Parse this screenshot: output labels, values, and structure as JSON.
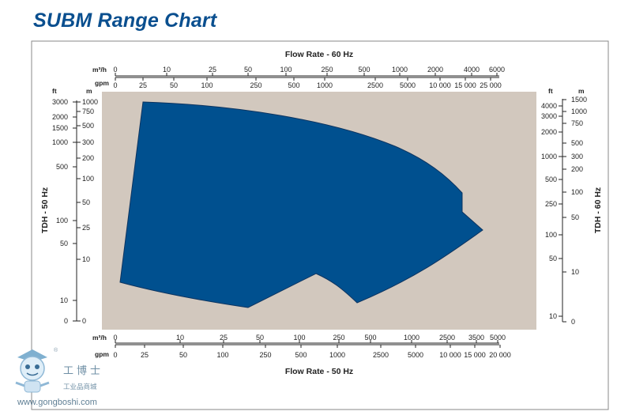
{
  "title": "SUBM Range Chart",
  "chart_data": {
    "type": "area",
    "title": "SUBM Range Chart",
    "top_axis": {
      "title": "Flow Rate - 60 Hz",
      "rows": [
        {
          "unit": "m³/h",
          "ticks": [
            "0",
            "10",
            "25",
            "50",
            "100",
            "250",
            "500",
            "1000",
            "2000",
            "4000",
            "6000"
          ]
        },
        {
          "unit": "gpm",
          "ticks": [
            "0",
            "25",
            "50",
            "100",
            "250",
            "500",
            "1000",
            "2500",
            "5000",
            "10 000",
            "15 000",
            "25 000"
          ]
        }
      ]
    },
    "bottom_axis": {
      "title": "Flow Rate - 50 Hz",
      "rows": [
        {
          "unit": "m³/h",
          "ticks": [
            "0",
            "10",
            "25",
            "50",
            "100",
            "250",
            "500",
            "1000",
            "2500",
            "3500",
            "5000"
          ]
        },
        {
          "unit": "gpm",
          "ticks": [
            "0",
            "25",
            "50",
            "100",
            "250",
            "500",
            "1000",
            "2500",
            "5000",
            "10 000",
            "15 000",
            "20 000"
          ]
        }
      ]
    },
    "left_axis": {
      "title": "TDH - 50 Hz",
      "ft_unit": "ft",
      "m_unit": "m",
      "ft_ticks": [
        "3000",
        "2000",
        "1500",
        "1000",
        "500",
        "100",
        "50",
        "10",
        "0"
      ],
      "m_ticks": [
        "1000",
        "750",
        "500",
        "300",
        "200",
        "100",
        "50",
        "25",
        "10",
        "0"
      ]
    },
    "right_axis": {
      "title": "TDH - 60 Hz",
      "ft_unit": "ft",
      "m_unit": "m",
      "ft_ticks": [
        "4000",
        "3000",
        "2000",
        "1000",
        "500",
        "250",
        "100",
        "50",
        "10"
      ],
      "m_ticks": [
        "1500",
        "1000",
        "750",
        "500",
        "300",
        "200",
        "100",
        "50",
        "10",
        "0"
      ]
    },
    "region": {
      "description_values": "operating envelope (flow vs. head)",
      "fill_color": "#00508f"
    },
    "colors": {
      "plot_background": "#d2c8be",
      "region": "#00508f",
      "title": "#0a4f8f"
    }
  },
  "watermark": {
    "cn_name": "工博士",
    "cn_sub": "工业品商城",
    "url": "www.gongboshi.com",
    "reg": "®"
  }
}
